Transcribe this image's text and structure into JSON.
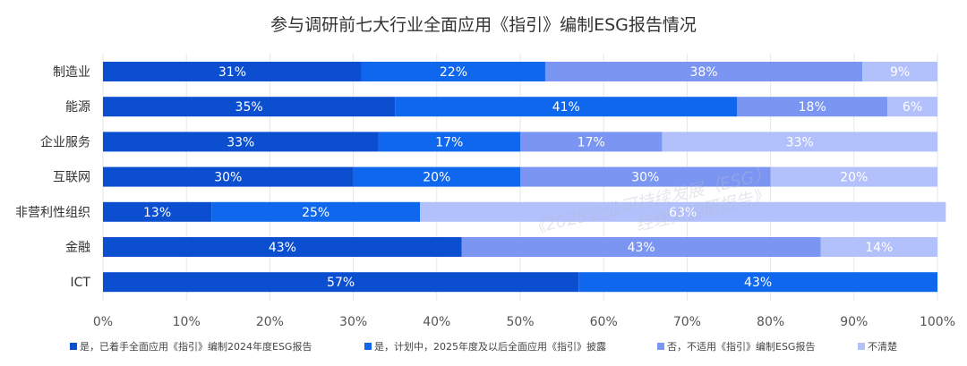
{
  "chart_data": {
    "type": "bar",
    "orientation": "horizontal",
    "stacked": true,
    "title": "参与调研前七大行业全面应用《指引》编制ESG报告情况",
    "categories": [
      "制造业",
      "能源",
      "企业服务",
      "互联网",
      "非营利性组织",
      "金融",
      "ICT"
    ],
    "series": [
      {
        "name": "是，已着手全面应用《指引》编制2024年度ESG报告",
        "color": "#0b4fd0",
        "values": [
          31,
          35,
          33,
          30,
          13,
          43,
          57
        ]
      },
      {
        "name": "是，计划中，2025年度及以后全面应用《指引》披露",
        "color": "#0f67ee",
        "values": [
          22,
          41,
          17,
          20,
          25,
          0,
          43
        ]
      },
      {
        "name": "否，不适用《指引》编制ESG报告",
        "color": "#7b95f2",
        "values": [
          38,
          18,
          17,
          30,
          0,
          43,
          0
        ]
      },
      {
        "name": "不清楚",
        "color": "#b2c0fb",
        "values": [
          9,
          6,
          33,
          20,
          63,
          14,
          0
        ]
      }
    ],
    "xlim": [
      0,
      100
    ],
    "xticks": [
      "0%",
      "10%",
      "20%",
      "30%",
      "40%",
      "50%",
      "60%",
      "70%",
      "80%",
      "90%",
      "100%"
    ],
    "grid": true,
    "legend_position": "bottom"
  },
  "watermark": {
    "line1": "《2025企业可持续发展（ESG）",
    "line2": "经理人调研报告》"
  }
}
